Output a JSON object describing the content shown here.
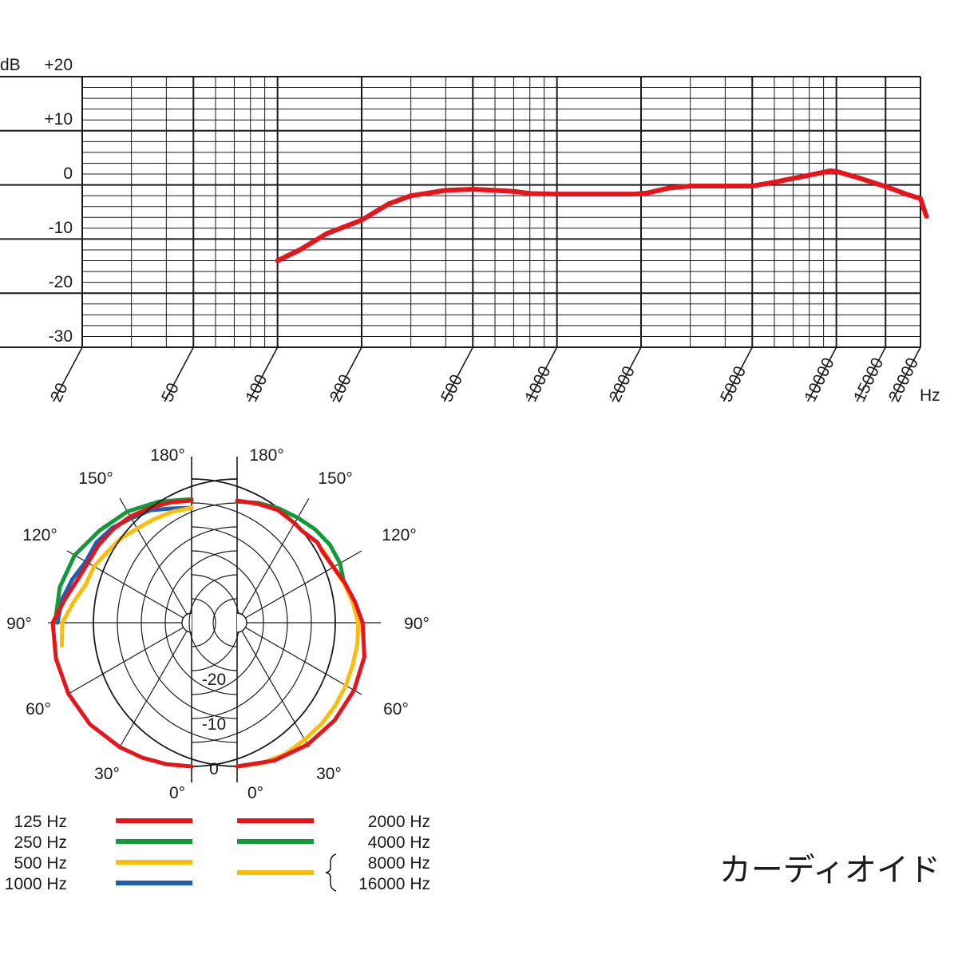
{
  "chart_data": [
    {
      "type": "line",
      "title": "",
      "ylabel": "dB",
      "xlabel": "Hz",
      "x_scale": "log",
      "xlim": [
        20,
        20000
      ],
      "ylim": [
        -30,
        20
      ],
      "y_ticks": [
        "+20",
        "+10",
        "0",
        "-10",
        "-20",
        "-30"
      ],
      "x_ticks": [
        "20",
        "50",
        "100",
        "200",
        "500",
        "1000",
        "2000",
        "5000",
        "10000",
        "15000",
        "20000"
      ],
      "grid": true,
      "series": [
        {
          "color": "#e8141b",
          "x": [
            100,
            120,
            150,
            200,
            250,
            300,
            400,
            500,
            700,
            800,
            1000,
            1500,
            1900,
            2100,
            2500,
            3000,
            5000,
            6000,
            8000,
            9500,
            10000,
            12000,
            15000,
            18000,
            20000,
            21000
          ],
          "y": [
            -14,
            -12,
            -9,
            -6.5,
            -3.5,
            -2,
            -1,
            -0.8,
            -1.2,
            -1.6,
            -1.7,
            -1.7,
            -1.7,
            -1.5,
            -0.6,
            -0.2,
            -0.2,
            0.5,
            1.8,
            2.6,
            2.5,
            1.3,
            -0.3,
            -1.8,
            -2.5,
            -5.8
          ]
        }
      ]
    },
    {
      "type": "polar",
      "title": "",
      "angle_labels": [
        "0°",
        "30°",
        "60°",
        "90°",
        "120°",
        "150°",
        "180°"
      ],
      "radial_labels": [
        "0",
        "-10",
        "-20"
      ],
      "rings_db": [
        0,
        -5,
        -10,
        -15,
        -20,
        -25,
        -30
      ],
      "legend_left": [
        {
          "label": "125 Hz",
          "color": "#e8141b"
        },
        {
          "label": "250 Hz",
          "color": "#119a37"
        },
        {
          "label": "500 Hz",
          "color": "#fbbd0a"
        },
        {
          "label": "1000 Hz",
          "color": "#1d5fb5"
        }
      ],
      "legend_right": [
        {
          "label": "2000 Hz",
          "color": "#e8141b"
        },
        {
          "label": "4000 Hz",
          "color": "#119a37"
        },
        {
          "label": "8000 Hz",
          "color": "#fbbd0a"
        },
        {
          "label": "16000 Hz",
          "color": "#fbbd0a"
        }
      ],
      "left_half": [
        {
          "name": "1000 Hz",
          "color": "#1d5fb5",
          "angles": [
            90,
            100,
            110,
            120,
            130,
            140,
            150,
            160,
            170,
            180
          ],
          "db": [
            -2,
            -2.5,
            -3.5,
            -4.5,
            -4,
            -4.2,
            -4.8,
            -5,
            -5.8,
            -6
          ]
        },
        {
          "name": "250 Hz",
          "color": "#119a37",
          "angles": [
            90,
            105,
            120,
            135,
            150,
            165,
            180
          ],
          "db": [
            -1.5,
            -1.5,
            -1.8,
            -2.8,
            -3.2,
            -3.8,
            -4.2
          ]
        },
        {
          "name": "500 Hz",
          "color": "#fbbd0a",
          "angles": [
            80,
            90,
            100,
            110,
            120,
            130,
            140,
            150,
            160,
            170,
            180
          ],
          "db": [
            -2.5,
            -3,
            -5,
            -6.5,
            -6.5,
            -7,
            -7,
            -7.3,
            -7,
            -6.5,
            -6
          ]
        },
        {
          "name": "125 Hz",
          "color": "#e8141b",
          "angles": [
            0,
            10,
            20,
            30,
            45,
            60,
            75,
            90,
            100,
            110,
            120,
            130,
            140,
            150,
            160,
            170,
            180
          ],
          "db": [
            0,
            0,
            0,
            0,
            0,
            -0.3,
            -0.7,
            -1,
            -3,
            -4.5,
            -5,
            -4.7,
            -4.5,
            -4.4,
            -4.5,
            -4.5,
            -4.5
          ]
        }
      ],
      "right_half": [
        {
          "name": "4000 Hz",
          "color": "#119a37",
          "angles": [
            110,
            120,
            130,
            140,
            150,
            160,
            170,
            180
          ],
          "db": [
            -6.2,
            -5.2,
            -4.7,
            -4.6,
            -4.7,
            -4.6,
            -4.6,
            -4.7
          ]
        },
        {
          "name": "8000/16000 Hz",
          "color": "#fbbd0a",
          "angles": [
            0,
            10,
            20,
            30,
            40,
            50,
            60,
            70,
            80,
            90,
            100,
            110,
            120,
            130
          ],
          "db": [
            0,
            -0.2,
            -0.8,
            -1.8,
            -2.5,
            -3.2,
            -3.8,
            -4.3,
            -4.5,
            -4.7,
            -5.5,
            -6.2,
            -6.8,
            -6.5
          ]
        },
        {
          "name": "2000 Hz",
          "color": "#e8141b",
          "angles": [
            0,
            15,
            30,
            45,
            60,
            75,
            90,
            100,
            110,
            120,
            130,
            135,
            145,
            150,
            160,
            170,
            180
          ],
          "db": [
            0,
            -0.2,
            -0.6,
            -1.2,
            -1.8,
            -2.5,
            -3.8,
            -5,
            -6,
            -6.8,
            -6.8,
            -6.3,
            -6.5,
            -6,
            -5,
            -4.8,
            -4.5
          ]
        }
      ]
    }
  ],
  "footer": {
    "caption": "カーディオイド"
  }
}
